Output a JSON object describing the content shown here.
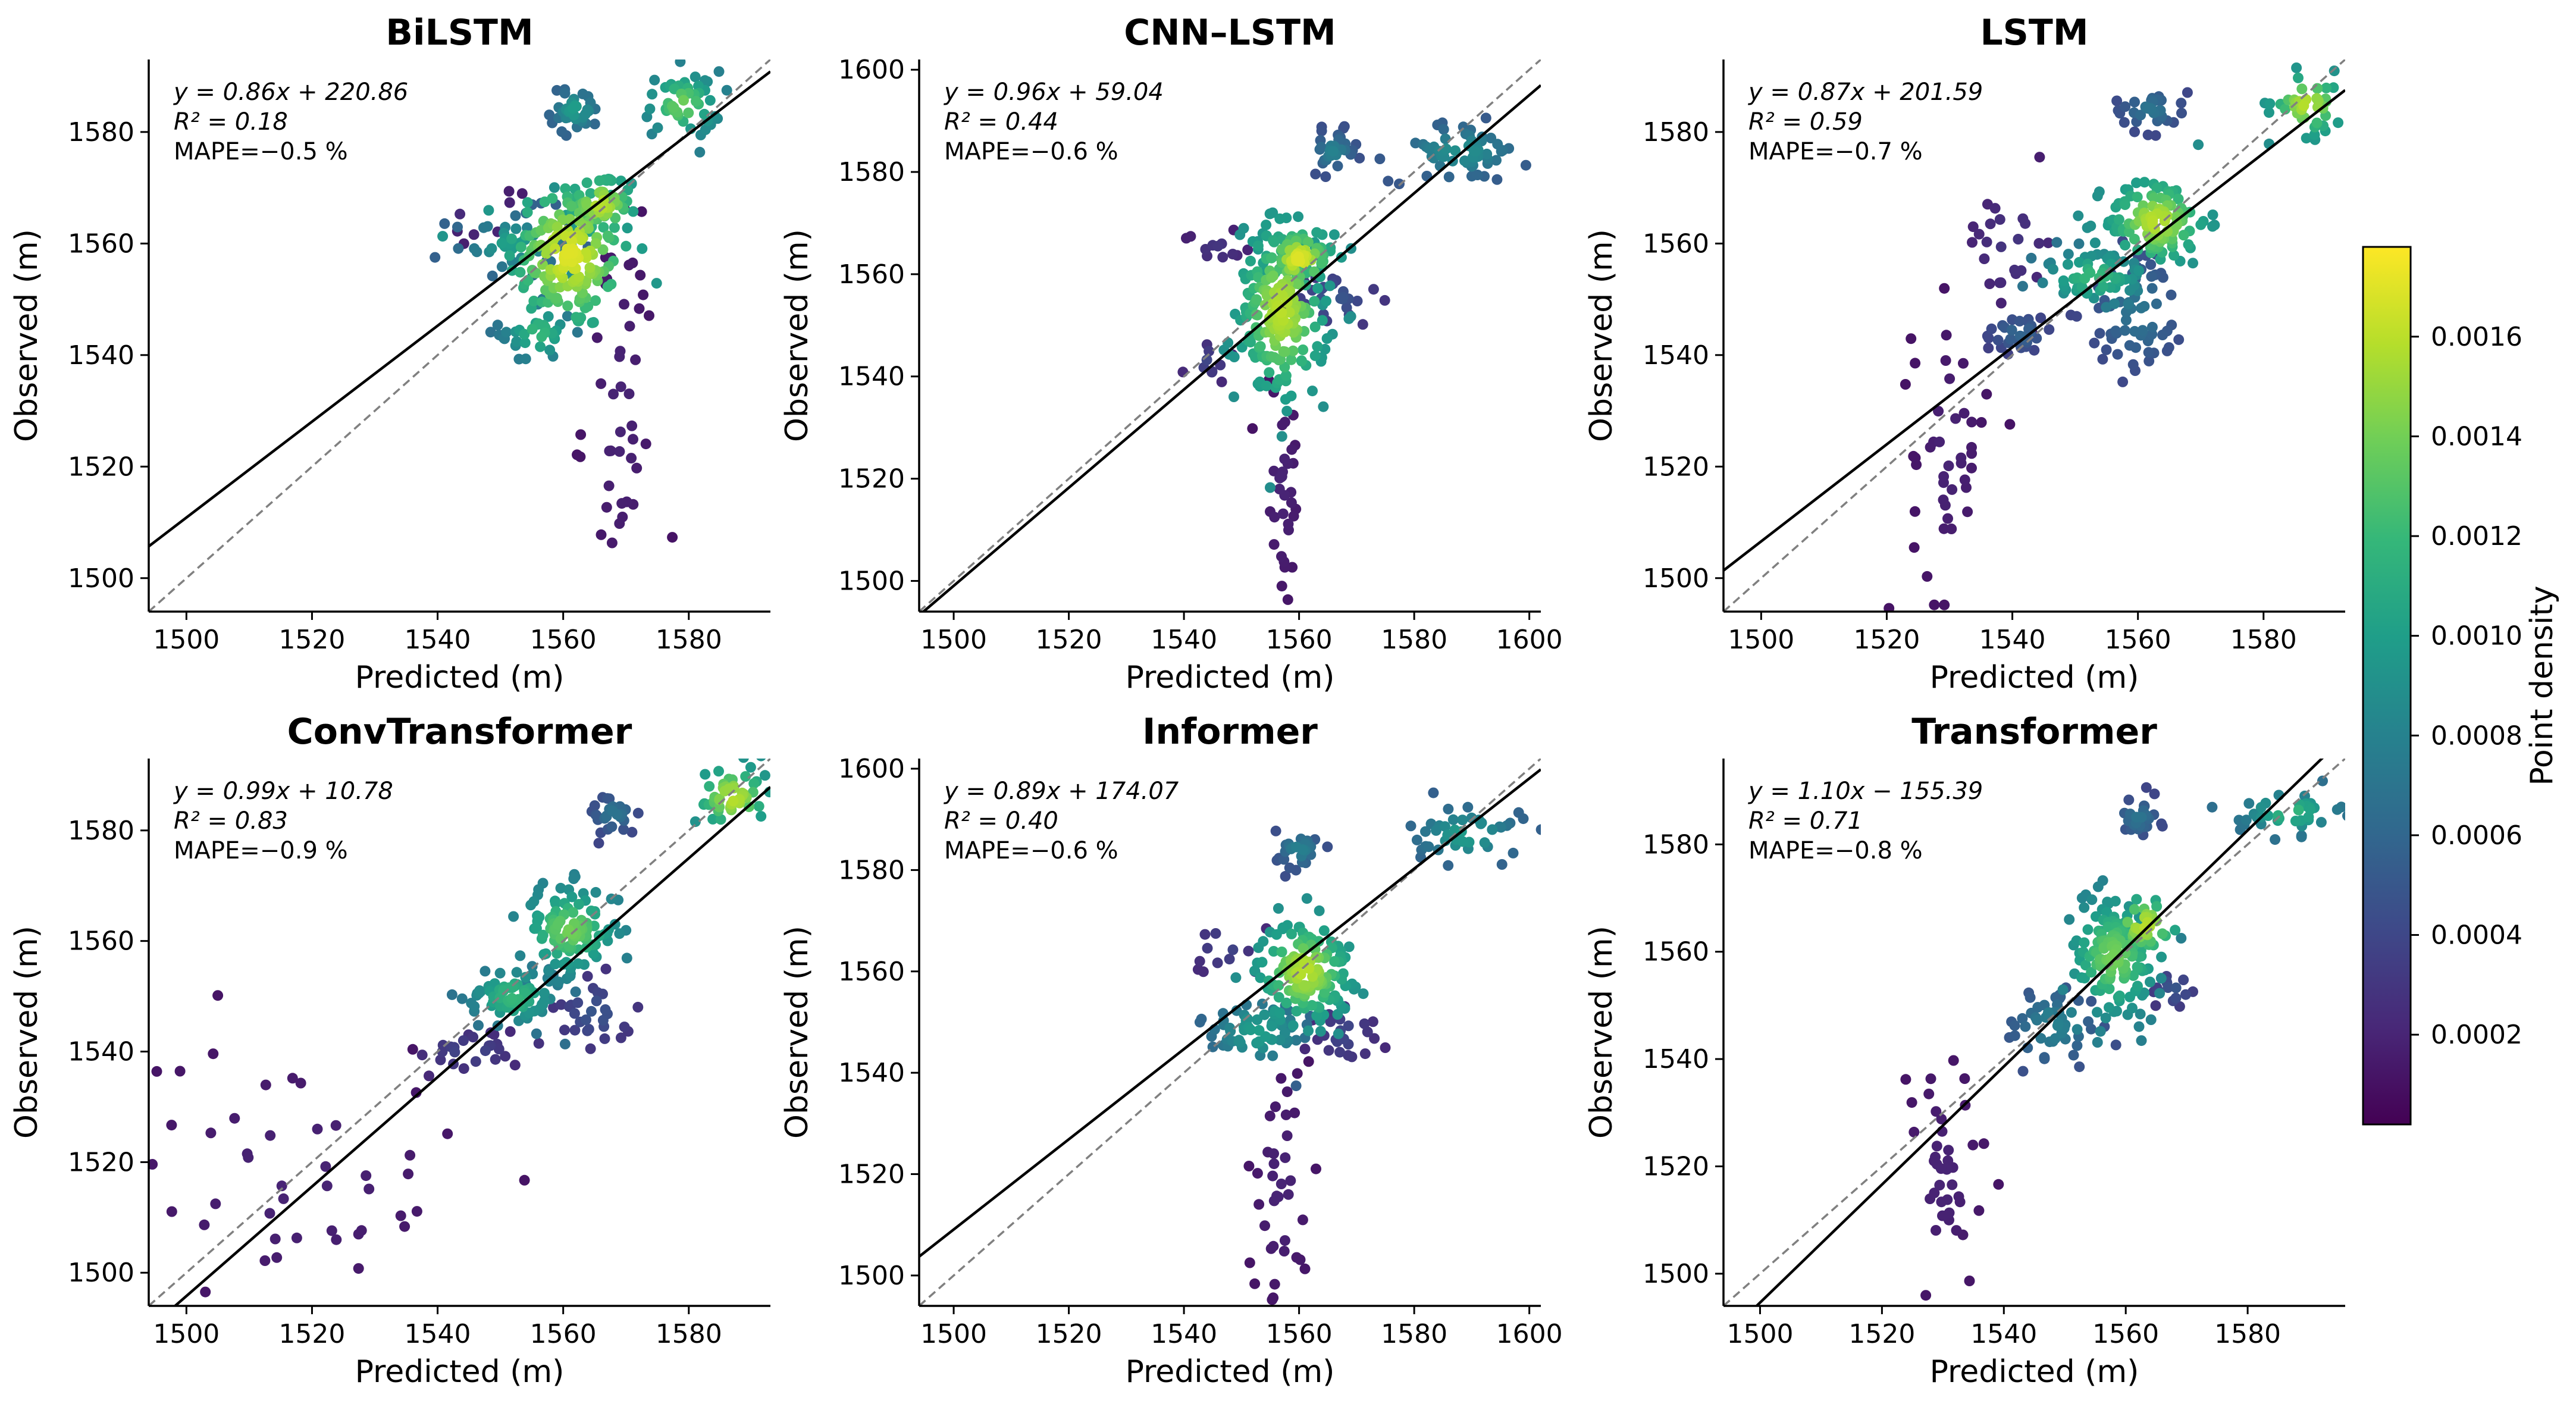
{
  "figure": {
    "colorbar": {
      "label": "Point density",
      "ticks": [
        0.0002,
        0.0004,
        0.0006,
        0.0008,
        0.001,
        0.0012,
        0.0014,
        0.0016
      ],
      "tick_labels": [
        "0.0002",
        "0.0004",
        "0.0006",
        "0.0008",
        "0.0010",
        "0.0012",
        "0.0014",
        "0.0016"
      ],
      "range": [
        2e-05,
        0.00178
      ],
      "colormap": [
        "#440154",
        "#482878",
        "#3e4989",
        "#31688e",
        "#26828e",
        "#1f9e89",
        "#35b779",
        "#6ece58",
        "#b5de2b",
        "#fde725"
      ]
    }
  },
  "chart_data": [
    {
      "type": "scatter",
      "title": "BiLSTM",
      "xlabel": "Predicted (m)",
      "ylabel": "Observed (m)",
      "xlim": [
        1494,
        1593
      ],
      "ylim": [
        1494,
        1593
      ],
      "xticks": [
        1500,
        1520,
        1540,
        1560,
        1580
      ],
      "yticks": [
        1500,
        1520,
        1540,
        1560,
        1580
      ],
      "annotation": [
        "y = 0.86x + 220.86",
        "R² = 0.18",
        "MAPE=−0.5 %"
      ],
      "fit": {
        "slope": 0.86,
        "intercept": 220.86
      },
      "clusters": [
        {
          "cx": 1561,
          "cy": 1558,
          "sx": 5,
          "sy": 7,
          "n": 160,
          "density": 0.0017
        },
        {
          "cx": 1566,
          "cy": 1567,
          "sx": 3,
          "sy": 3,
          "n": 60,
          "density": 0.0016
        },
        {
          "cx": 1552,
          "cy": 1560,
          "sx": 5,
          "sy": 3,
          "n": 50,
          "density": 0.001
        },
        {
          "cx": 1556,
          "cy": 1544,
          "sx": 3,
          "sy": 3,
          "n": 35,
          "density": 0.0012
        },
        {
          "cx": 1562,
          "cy": 1584,
          "sx": 2,
          "sy": 2,
          "n": 35,
          "density": 0.001
        },
        {
          "cx": 1579,
          "cy": 1585,
          "sx": 3,
          "sy": 3,
          "n": 50,
          "density": 0.0014
        },
        {
          "cx": 1569,
          "cy": 1530,
          "sx": 3,
          "sy": 20,
          "n": 45,
          "density": 0.0002
        },
        {
          "cx": 1547,
          "cy": 1565,
          "sx": 3,
          "sy": 2,
          "n": 8,
          "density": 0.0003
        }
      ]
    },
    {
      "type": "scatter",
      "title": "CNN–LSTM",
      "xlabel": "Predicted (m)",
      "ylabel": "Observed (m)",
      "xlim": [
        1494,
        1602
      ],
      "ylim": [
        1494,
        1602
      ],
      "xticks": [
        1500,
        1520,
        1540,
        1560,
        1580,
        1600
      ],
      "yticks": [
        1500,
        1520,
        1540,
        1560,
        1580,
        1600
      ],
      "annotation": [
        "y = 0.96x + 59.04",
        "R² = 0.44",
        "MAPE=−0.6 %"
      ],
      "fit": {
        "slope": 0.96,
        "intercept": 59.04
      },
      "clusters": [
        {
          "cx": 1557,
          "cy": 1553,
          "sx": 4,
          "sy": 9,
          "n": 200,
          "density": 0.0016
        },
        {
          "cx": 1560,
          "cy": 1563,
          "sx": 3,
          "sy": 3,
          "n": 60,
          "density": 0.0017
        },
        {
          "cx": 1588,
          "cy": 1584,
          "sx": 6,
          "sy": 3,
          "n": 60,
          "density": 0.0009
        },
        {
          "cx": 1566,
          "cy": 1584,
          "sx": 2,
          "sy": 2,
          "n": 30,
          "density": 0.0008
        },
        {
          "cx": 1566,
          "cy": 1555,
          "sx": 4,
          "sy": 3,
          "n": 25,
          "density": 0.0005
        },
        {
          "cx": 1557,
          "cy": 1518,
          "sx": 2,
          "sy": 12,
          "n": 35,
          "density": 0.0002
        },
        {
          "cx": 1546,
          "cy": 1565,
          "sx": 3,
          "sy": 2,
          "n": 12,
          "density": 0.0003
        },
        {
          "cx": 1544,
          "cy": 1543,
          "sx": 2,
          "sy": 2,
          "n": 10,
          "density": 0.0004
        }
      ]
    },
    {
      "type": "scatter",
      "title": "LSTM",
      "xlabel": "Predicted (m)",
      "ylabel": "Observed (m)",
      "xlim": [
        1494,
        1593
      ],
      "ylim": [
        1494,
        1593
      ],
      "xticks": [
        1500,
        1520,
        1540,
        1560,
        1580
      ],
      "yticks": [
        1500,
        1520,
        1540,
        1560,
        1580
      ],
      "annotation": [
        "y = 0.87x + 201.59",
        "R² = 0.59",
        "MAPE=−0.7 %"
      ],
      "fit": {
        "slope": 0.87,
        "intercept": 201.59
      },
      "clusters": [
        {
          "cx": 1563,
          "cy": 1564,
          "sx": 4,
          "sy": 4,
          "n": 120,
          "density": 0.0016
        },
        {
          "cx": 1553,
          "cy": 1554,
          "sx": 5,
          "sy": 3,
          "n": 60,
          "density": 0.0012
        },
        {
          "cx": 1560,
          "cy": 1548,
          "sx": 4,
          "sy": 6,
          "n": 70,
          "density": 0.0007
        },
        {
          "cx": 1541,
          "cy": 1544,
          "sx": 3,
          "sy": 2,
          "n": 30,
          "density": 0.0006
        },
        {
          "cx": 1587,
          "cy": 1585,
          "sx": 3,
          "sy": 3,
          "n": 40,
          "density": 0.0016
        },
        {
          "cx": 1562,
          "cy": 1584,
          "sx": 3,
          "sy": 2,
          "n": 35,
          "density": 0.0007
        },
        {
          "cx": 1530,
          "cy": 1522,
          "sx": 3,
          "sy": 13,
          "n": 45,
          "density": 0.0002
        },
        {
          "cx": 1540,
          "cy": 1560,
          "sx": 4,
          "sy": 6,
          "n": 25,
          "density": 0.0003
        }
      ]
    },
    {
      "type": "scatter",
      "title": "ConvTransformer",
      "xlabel": "Predicted (m)",
      "ylabel": "Observed (m)",
      "xlim": [
        1494,
        1593
      ],
      "ylim": [
        1494,
        1593
      ],
      "xticks": [
        1500,
        1520,
        1540,
        1560,
        1580
      ],
      "yticks": [
        1500,
        1520,
        1540,
        1560,
        1580
      ],
      "annotation": [
        "y = 0.99x + 10.78",
        "R² = 0.83",
        "MAPE=−0.9 %"
      ],
      "fit": {
        "slope": 0.99,
        "intercept": 10.78
      },
      "clusters": [
        {
          "cx": 1561,
          "cy": 1562,
          "sx": 4,
          "sy": 4,
          "n": 110,
          "density": 0.0014
        },
        {
          "cx": 1552,
          "cy": 1550,
          "sx": 4,
          "sy": 3,
          "n": 80,
          "density": 0.0012
        },
        {
          "cx": 1565,
          "cy": 1547,
          "sx": 3,
          "sy": 3,
          "n": 30,
          "density": 0.0005
        },
        {
          "cx": 1587,
          "cy": 1586,
          "sx": 3,
          "sy": 3,
          "n": 50,
          "density": 0.0016
        },
        {
          "cx": 1568,
          "cy": 1583,
          "sx": 2,
          "sy": 2,
          "n": 30,
          "density": 0.0007
        },
        {
          "cx": 1545,
          "cy": 1540,
          "sx": 4,
          "sy": 2,
          "n": 25,
          "density": 0.0004
        },
        {
          "cx": 1518,
          "cy": 1517,
          "sx": 14,
          "sy": 14,
          "n": 50,
          "density": 0.0002
        }
      ]
    },
    {
      "type": "scatter",
      "title": "Informer",
      "xlabel": "Predicted (m)",
      "ylabel": "Observed (m)",
      "xlim": [
        1494,
        1602
      ],
      "ylim": [
        1494,
        1602
      ],
      "xticks": [
        1500,
        1520,
        1540,
        1560,
        1580,
        1600
      ],
      "yticks": [
        1500,
        1520,
        1540,
        1560,
        1580,
        1600
      ],
      "annotation": [
        "y = 0.89x + 174.07",
        "R² = 0.40",
        "MAPE=−0.6 %"
      ],
      "fit": {
        "slope": 0.89,
        "intercept": 174.07
      },
      "clusters": [
        {
          "cx": 1561,
          "cy": 1560,
          "sx": 4,
          "sy": 5,
          "n": 150,
          "density": 0.0016
        },
        {
          "cx": 1553,
          "cy": 1548,
          "sx": 5,
          "sy": 4,
          "n": 60,
          "density": 0.001
        },
        {
          "cx": 1560,
          "cy": 1584,
          "sx": 2,
          "sy": 2,
          "n": 30,
          "density": 0.0008
        },
        {
          "cx": 1589,
          "cy": 1587,
          "sx": 5,
          "sy": 3,
          "n": 45,
          "density": 0.001
        },
        {
          "cx": 1568,
          "cy": 1548,
          "sx": 3,
          "sy": 4,
          "n": 25,
          "density": 0.0004
        },
        {
          "cx": 1557,
          "cy": 1517,
          "sx": 3,
          "sy": 13,
          "n": 40,
          "density": 0.0002
        },
        {
          "cx": 1547,
          "cy": 1565,
          "sx": 3,
          "sy": 3,
          "n": 12,
          "density": 0.0004
        }
      ]
    },
    {
      "type": "scatter",
      "title": "Transformer",
      "xlabel": "Predicted (m)",
      "ylabel": "Observed (m)",
      "xlim": [
        1494,
        1596
      ],
      "ylim": [
        1494,
        1596
      ],
      "xticks": [
        1500,
        1520,
        1540,
        1560,
        1580
      ],
      "yticks": [
        1500,
        1520,
        1540,
        1560,
        1580
      ],
      "annotation": [
        "y = 1.10x − 155.39",
        "R² = 0.71",
        "MAPE=−0.8 %"
      ],
      "fit": {
        "slope": 1.1,
        "intercept": -155.39
      },
      "clusters": [
        {
          "cx": 1558,
          "cy": 1559,
          "sx": 4,
          "sy": 6,
          "n": 140,
          "density": 0.0014
        },
        {
          "cx": 1563,
          "cy": 1565,
          "sx": 3,
          "sy": 3,
          "n": 40,
          "density": 0.0016
        },
        {
          "cx": 1548,
          "cy": 1546,
          "sx": 4,
          "sy": 4,
          "n": 50,
          "density": 0.0008
        },
        {
          "cx": 1568,
          "cy": 1553,
          "sx": 2,
          "sy": 2,
          "n": 15,
          "density": 0.0005
        },
        {
          "cx": 1587,
          "cy": 1586,
          "sx": 4,
          "sy": 2,
          "n": 40,
          "density": 0.0012
        },
        {
          "cx": 1562,
          "cy": 1585,
          "sx": 2,
          "sy": 2,
          "n": 25,
          "density": 0.0007
        },
        {
          "cx": 1530,
          "cy": 1518,
          "sx": 4,
          "sy": 12,
          "n": 40,
          "density": 0.0002
        }
      ]
    }
  ]
}
